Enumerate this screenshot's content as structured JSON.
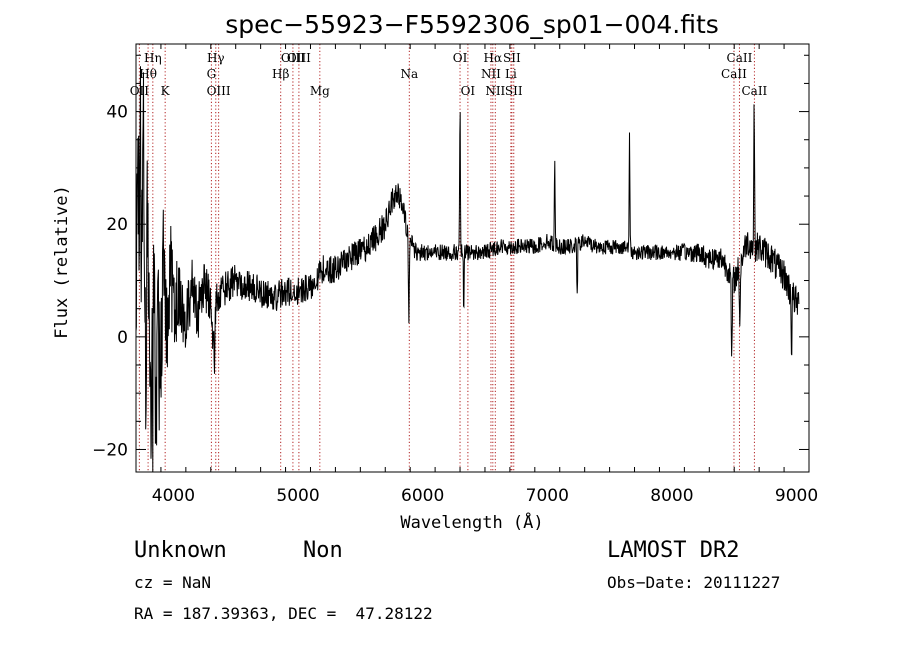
{
  "chart_data": {
    "type": "line",
    "title": "spec−55923−F5592306_sp01−004.fits",
    "xlabel": "Wavelength (Å)",
    "ylabel": "Flux (relative)",
    "xlim": [
      3700,
      9100
    ],
    "ylim": [
      -24,
      52
    ],
    "xticks": [
      4000,
      5000,
      6000,
      7000,
      8000,
      9000
    ],
    "yticks": [
      -20,
      0,
      20,
      40
    ],
    "grid": false,
    "line_color": "#000000",
    "marker_color": "#b22222",
    "spectrum_anchors": [
      [
        3700,
        10
      ],
      [
        3720,
        28
      ],
      [
        3740,
        2
      ],
      [
        3760,
        38
      ],
      [
        3780,
        -12
      ],
      [
        3800,
        16
      ],
      [
        3820,
        -18
      ],
      [
        3840,
        24
      ],
      [
        3860,
        -20
      ],
      [
        3880,
        14
      ],
      [
        3900,
        -6
      ],
      [
        3920,
        16
      ],
      [
        3950,
        0
      ],
      [
        3980,
        12
      ],
      [
        4000,
        4
      ],
      [
        4050,
        8
      ],
      [
        4100,
        2
      ],
      [
        4150,
        11
      ],
      [
        4200,
        4
      ],
      [
        4250,
        9
      ],
      [
        4300,
        6
      ],
      [
        4320,
        0
      ],
      [
        4350,
        7
      ],
      [
        4400,
        8
      ],
      [
        4500,
        10
      ],
      [
        4600,
        9
      ],
      [
        4700,
        8
      ],
      [
        4800,
        7
      ],
      [
        4900,
        8
      ],
      [
        5000,
        8
      ],
      [
        5100,
        9
      ],
      [
        5200,
        12
      ],
      [
        5300,
        12
      ],
      [
        5400,
        14
      ],
      [
        5500,
        15
      ],
      [
        5600,
        17
      ],
      [
        5700,
        20
      ],
      [
        5750,
        24
      ],
      [
        5800,
        26
      ],
      [
        5850,
        22
      ],
      [
        5880,
        18
      ],
      [
        5900,
        17
      ],
      [
        5950,
        15
      ],
      [
        6000,
        15
      ],
      [
        6100,
        15
      ],
      [
        6200,
        15
      ],
      [
        6300,
        15
      ],
      [
        6400,
        15
      ],
      [
        6500,
        15
      ],
      [
        6600,
        16
      ],
      [
        6700,
        16
      ],
      [
        6800,
        16
      ],
      [
        6900,
        16
      ],
      [
        7000,
        17
      ],
      [
        7100,
        16
      ],
      [
        7200,
        16
      ],
      [
        7300,
        17
      ],
      [
        7400,
        16
      ],
      [
        7500,
        16
      ],
      [
        7600,
        16
      ],
      [
        7700,
        15
      ],
      [
        7800,
        15
      ],
      [
        7900,
        15
      ],
      [
        8000,
        15
      ],
      [
        8100,
        15
      ],
      [
        8200,
        15
      ],
      [
        8300,
        14
      ],
      [
        8400,
        14
      ],
      [
        8450,
        12
      ],
      [
        8500,
        10
      ],
      [
        8550,
        13
      ],
      [
        8600,
        17
      ],
      [
        8650,
        16
      ],
      [
        8700,
        16
      ],
      [
        8750,
        15
      ],
      [
        8800,
        14
      ],
      [
        8850,
        12
      ],
      [
        8900,
        11
      ],
      [
        8950,
        8
      ],
      [
        9000,
        6
      ]
    ],
    "spectrum_features": [
      [
        3735,
        40,
        3
      ],
      [
        3790,
        34,
        3
      ],
      [
        3835,
        -20,
        3
      ],
      [
        3885,
        -22,
        3
      ],
      [
        4330,
        -4,
        3
      ],
      [
        5890,
        4,
        4
      ],
      [
        6300,
        41,
        3
      ],
      [
        6330,
        4,
        3
      ],
      [
        7060,
        32,
        3
      ],
      [
        7240,
        7,
        3
      ],
      [
        7660,
        37,
        3
      ],
      [
        8480,
        -4,
        4
      ],
      [
        8545,
        3,
        4
      ],
      [
        8660,
        43,
        3
      ],
      [
        8960,
        -3,
        3
      ]
    ],
    "noise_amplitudes": [
      [
        3700,
        14
      ],
      [
        4000,
        8
      ],
      [
        4300,
        4
      ],
      [
        4500,
        3
      ],
      [
        5000,
        2.5
      ],
      [
        5700,
        2.5
      ],
      [
        6000,
        1.5
      ],
      [
        7000,
        1.4
      ],
      [
        8000,
        1.4
      ],
      [
        8500,
        2.5
      ],
      [
        9000,
        3
      ]
    ],
    "lines": [
      {
        "label": "Hη",
        "x": 3835,
        "row": 0
      },
      {
        "label": "Hθ",
        "x": 3797,
        "row": 1
      },
      {
        "label": "OII",
        "x": 3727,
        "row": 2
      },
      {
        "label": "K",
        "x": 3934,
        "row": 2
      },
      {
        "label": "Hγ",
        "x": 4340,
        "row": 0
      },
      {
        "label": "G",
        "x": 4305,
        "row": 1
      },
      {
        "label": "OIII",
        "x": 4363,
        "row": 2
      },
      {
        "label": "Hβ",
        "x": 4861,
        "row": 1
      },
      {
        "label": "OIII",
        "x": 4959,
        "row": 0
      },
      {
        "label": "OIII",
        "x": 5007,
        "row": 0
      },
      {
        "label": "Mg",
        "x": 5175,
        "row": 2
      },
      {
        "label": "Na",
        "x": 5893,
        "row": 1
      },
      {
        "label": "OI",
        "x": 6300,
        "row": 0
      },
      {
        "label": "OI",
        "x": 6363,
        "row": 2
      },
      {
        "label": "Hα",
        "x": 6563,
        "row": 0
      },
      {
        "label": "NII",
        "x": 6548,
        "row": 1
      },
      {
        "label": "NII",
        "x": 6583,
        "row": 2
      },
      {
        "label": "SII",
        "x": 6716,
        "row": 0
      },
      {
        "label": "SII",
        "x": 6731,
        "row": 2
      },
      {
        "label": "Li",
        "x": 6708,
        "row": 1
      },
      {
        "label": "CaII",
        "x": 8498,
        "row": 1
      },
      {
        "label": "CaII",
        "x": 8542,
        "row": 0
      },
      {
        "label": "CaII",
        "x": 8662,
        "row": 2
      }
    ]
  },
  "info": {
    "object_class": "Unknown",
    "object_subclass": "Non",
    "survey": "LAMOST DR2",
    "cz": "cz = NaN",
    "obs_date": "Obs−Date: 20111227",
    "coords": "RA = 187.39363, DEC =  47.28122"
  }
}
